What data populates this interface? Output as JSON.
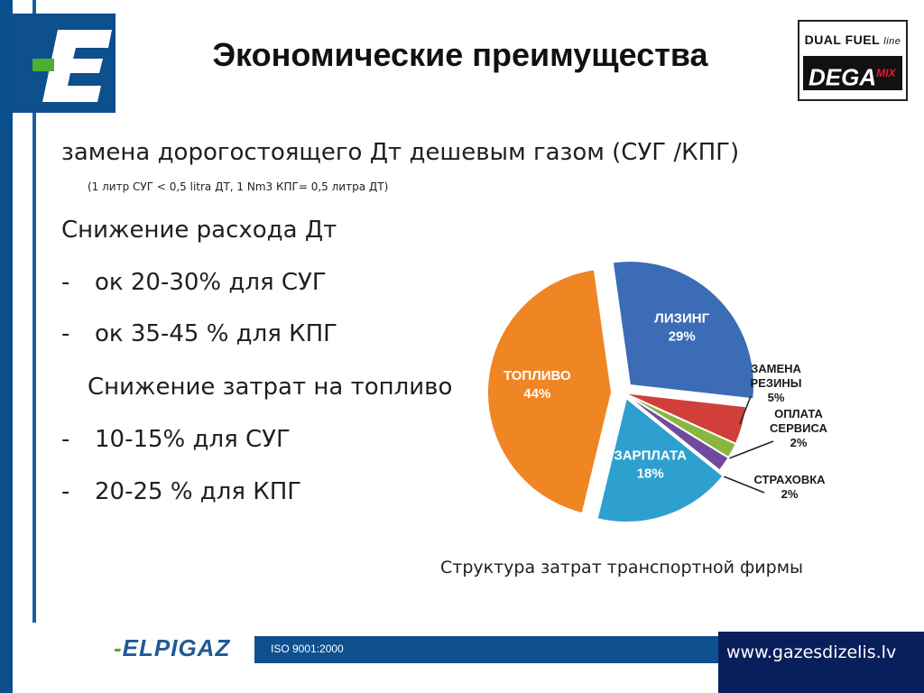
{
  "slide": {
    "title": "Экономические преимущества",
    "brand_top": "DUAL FUEL",
    "brand_top_script": "line",
    "brand_bottom": "DEGA",
    "brand_bottom_sup": "MIX",
    "lines": {
      "l1": "замена дорогостоящего Дт дешевым газом (СУГ /КПГ)",
      "l2": "(1 литр СУГ < 0,5 litra ДТ, 1 Nm3 КПГ= 0,5 литра ДТ)",
      "l3": "Снижение расхода Дт",
      "l4_dash": "-",
      "l4": "ок 20-30% для СУГ",
      "l5_dash": "-",
      "l5": "ок 35-45 % для КПГ",
      "l6": "Снижение затрат на топливо",
      "l7_dash": "-",
      "l7": "10-15% для СУГ",
      "l8_dash": "-",
      "l8": "20-25 % для КПГ"
    },
    "chart_caption": "Структура затрат транспортной фирмы"
  },
  "footer": {
    "company": "ELPIGAZ",
    "company_dash": "-",
    "iso": "ISO 9001:2000",
    "website": "www.gazesdizelis.lv"
  },
  "colors": {
    "brand_blue": "#0e4f8e",
    "lizing": "#3b6cb5",
    "zamena": "#d13f3a",
    "oplata": "#8ab63f",
    "strakhovka": "#6f4a9e",
    "zarplata": "#2ea0cf",
    "toplivo": "#f08524"
  },
  "chart_data": {
    "type": "pie",
    "title": "Структура затрат транспортной фирмы",
    "slices": [
      {
        "label": [
          "ЛИЗИНГ"
        ],
        "value": 29,
        "label_text": "29%",
        "color": "#3b6cb5",
        "inside": true
      },
      {
        "label": [
          "ЗАМЕНА",
          "РЕЗИНЫ"
        ],
        "value": 5,
        "label_text": "5%",
        "color": "#d13f3a",
        "inside": false
      },
      {
        "label": [
          "ОПЛАТА",
          "СЕРВИСА"
        ],
        "value": 2,
        "label_text": "2%",
        "color": "#8ab63f",
        "inside": false
      },
      {
        "label": [
          "СТРАХОВКА"
        ],
        "value": 2,
        "label_text": "2%",
        "color": "#6f4a9e",
        "inside": false
      },
      {
        "label": [
          "ЗАРПЛАТА"
        ],
        "value": 18,
        "label_text": "18%",
        "color": "#2ea0cf",
        "inside": true
      },
      {
        "label": [
          "ТОПЛИВО"
        ],
        "value": 44,
        "label_text": "44%",
        "color": "#f08524",
        "inside": true
      }
    ]
  }
}
